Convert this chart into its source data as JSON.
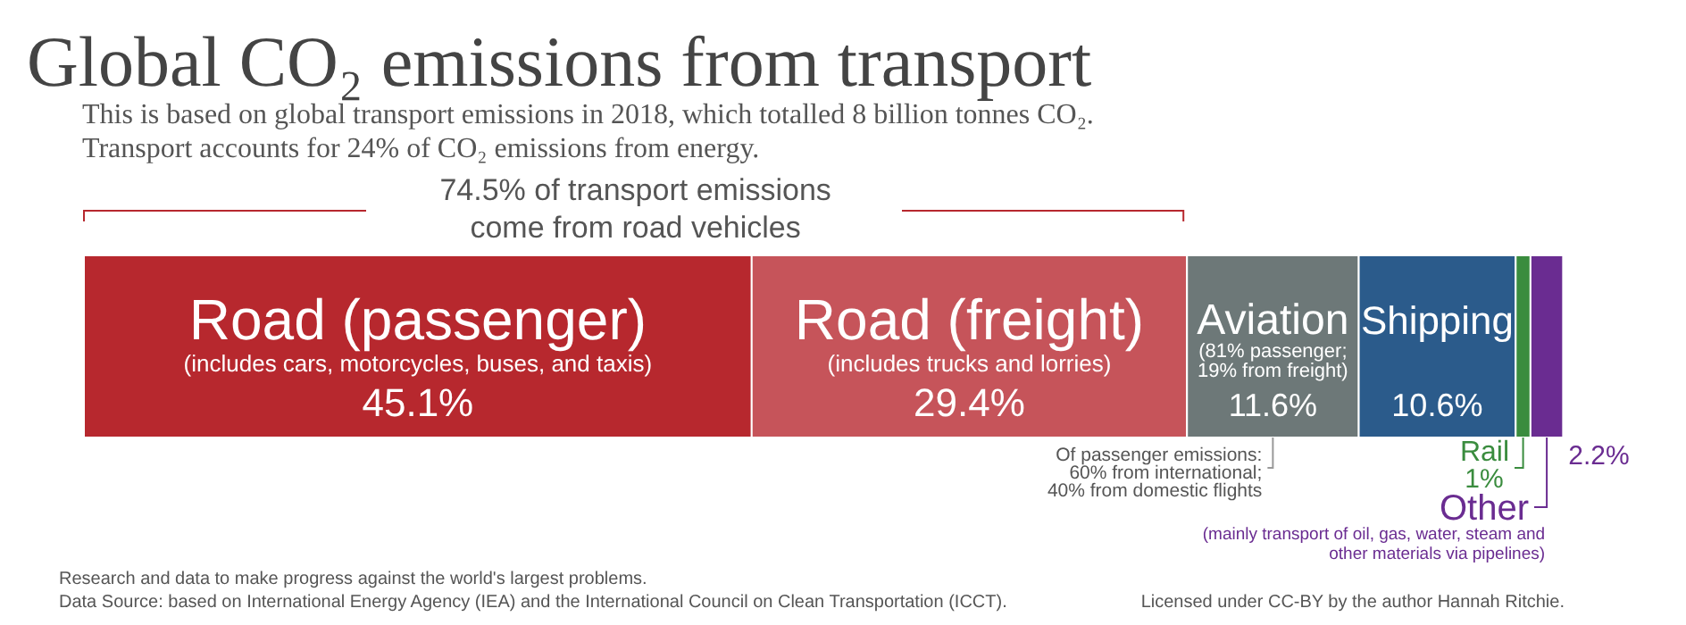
{
  "chart_data": {
    "type": "bar",
    "orientation": "horizontal",
    "stacked": true,
    "title": "Global CO₂ emissions from transport",
    "subtitle": "This is based on global transport emissions in 2018, which totalled 8 billion tonnes CO₂.\nTransport accounts for 24% of CO₂ emissions from energy.",
    "categories": [
      null
    ],
    "xlim": [
      0,
      100
    ],
    "series": [
      {
        "name": "Road (passenger)",
        "color": "#b7282e",
        "values": [
          45.1
        ],
        "value_labels": [
          "45.1%"
        ]
      },
      {
        "name": "Road (freight)",
        "color": "#c6545a",
        "values": [
          29.4
        ],
        "value_labels": [
          "29.4%"
        ]
      },
      {
        "name": "Aviation",
        "color": "#6d7878",
        "values": [
          11.6
        ],
        "value_labels": [
          "11.6%"
        ]
      },
      {
        "name": "Shipping",
        "color": "#2b5b8b",
        "values": [
          10.6
        ],
        "value_labels": [
          "10.6%"
        ]
      },
      {
        "name": "Rail",
        "color": "#3a8c3e",
        "values": [
          1
        ],
        "value_labels": [
          "1%"
        ]
      },
      {
        "name": "Other",
        "color": "#6a2c91",
        "values": [
          2.2
        ],
        "value_labels": [
          "2.2%"
        ]
      }
    ],
    "annotations": [
      "(includes cars, motorcycles, buses, and taxis)",
      "(includes trucks and lorries)",
      "(81% passenger;",
      "19% from freight)",
      "74.5% of transport emissions",
      "come from road vehicles",
      "Of passenger emissions:",
      "60% from international;",
      "40% from domestic flights",
      "(mainly transport of oil, gas, water, steam and",
      "other materials via pipelines)",
      "Research and data to make progress against the world's largest problems.",
      "Data Source: based on International Energy Agency (IEA) and the International Council on Clean Transportation (ICCT).",
      "Licensed under CC-BY by the author Hannah Ritchie."
    ]
  }
}
